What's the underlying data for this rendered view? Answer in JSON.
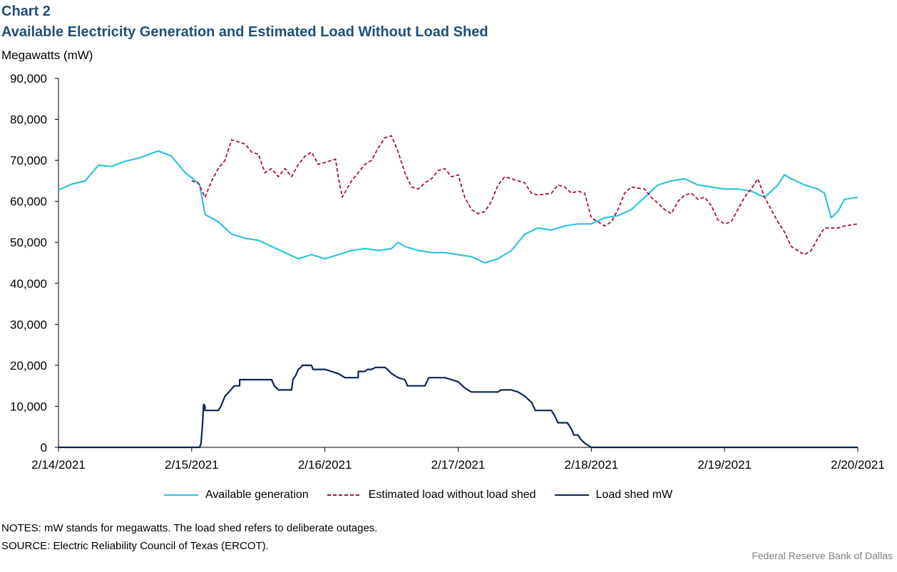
{
  "header": {
    "chart_label": "Chart 2",
    "title": "Available Electricity Generation and Estimated Load Without Load Shed",
    "unit": "Megawatts (mW)"
  },
  "footer": {
    "notes": "NOTES: mW stands for megawatts. The load shed refers to deliberate outages.",
    "source": "SOURCE: Electric Reliability Council of Texas (ERCOT).",
    "credit": "Federal Reserve  Bank of Dallas"
  },
  "chart_data": {
    "type": "line",
    "title": "Available Electricity Generation and Estimated Load Without Load Shed",
    "ylabel": "Megawatts (mW)",
    "xlabel": "",
    "ylim": [
      0,
      90000
    ],
    "xlim": [
      0,
      6
    ],
    "x_tick_values": [
      0,
      1,
      2,
      3,
      4,
      5,
      6
    ],
    "x_tick_labels": [
      "2/14/2021",
      "2/15/2021",
      "2/16/2021",
      "2/17/2021",
      "2/18/2021",
      "2/19/2021",
      "2/20/2021"
    ],
    "y_ticks": [
      0,
      10000,
      20000,
      30000,
      40000,
      50000,
      60000,
      70000,
      80000,
      90000
    ],
    "y_tick_labels": [
      "0",
      "10,000",
      "20,000",
      "30,000",
      "40,000",
      "50,000",
      "60,000",
      "70,000",
      "80,000",
      "90,000"
    ],
    "x_unit": "days since 2/14/2021",
    "grid": false,
    "legend_position": "bottom",
    "series": [
      {
        "name": "Available generation",
        "color": "#2fc4db",
        "style": "solid",
        "points": [
          [
            0,
            62800
          ],
          [
            0.1,
            64200
          ],
          [
            0.2,
            65000
          ],
          [
            0.3,
            68800
          ],
          [
            0.4,
            68500
          ],
          [
            0.5,
            69800
          ],
          [
            0.6,
            70500
          ],
          [
            0.75,
            72300
          ],
          [
            0.85,
            71000
          ],
          [
            0.95,
            67000
          ],
          [
            1.0,
            65800
          ],
          [
            1.06,
            64000
          ],
          [
            1.1,
            56800
          ],
          [
            1.2,
            55000
          ],
          [
            1.3,
            52000
          ],
          [
            1.4,
            51000
          ],
          [
            1.5,
            50500
          ],
          [
            1.6,
            49000
          ],
          [
            1.7,
            47500
          ],
          [
            1.8,
            46000
          ],
          [
            1.9,
            47000
          ],
          [
            2.0,
            46000
          ],
          [
            2.1,
            47000
          ],
          [
            2.2,
            48000
          ],
          [
            2.3,
            48500
          ],
          [
            2.4,
            48000
          ],
          [
            2.5,
            48500
          ],
          [
            2.55,
            50000
          ],
          [
            2.6,
            49000
          ],
          [
            2.7,
            48000
          ],
          [
            2.8,
            47500
          ],
          [
            2.9,
            47500
          ],
          [
            3.0,
            47000
          ],
          [
            3.1,
            46500
          ],
          [
            3.2,
            45000
          ],
          [
            3.3,
            46000
          ],
          [
            3.4,
            48000
          ],
          [
            3.5,
            52000
          ],
          [
            3.6,
            53500
          ],
          [
            3.7,
            53000
          ],
          [
            3.8,
            54000
          ],
          [
            3.9,
            54500
          ],
          [
            4.0,
            54500
          ],
          [
            4.1,
            56000
          ],
          [
            4.2,
            56500
          ],
          [
            4.3,
            58000
          ],
          [
            4.4,
            61000
          ],
          [
            4.5,
            64000
          ],
          [
            4.6,
            65000
          ],
          [
            4.7,
            65500
          ],
          [
            4.8,
            64000
          ],
          [
            4.9,
            63500
          ],
          [
            5.0,
            63000
          ],
          [
            5.1,
            63000
          ],
          [
            5.2,
            62500
          ],
          [
            5.3,
            61000
          ],
          [
            5.35,
            62500
          ],
          [
            5.4,
            64000
          ],
          [
            5.45,
            66500
          ],
          [
            5.5,
            65500
          ],
          [
            5.6,
            64000
          ],
          [
            5.7,
            63000
          ],
          [
            5.75,
            62000
          ],
          [
            5.8,
            56000
          ],
          [
            5.85,
            57500
          ],
          [
            5.9,
            60500
          ],
          [
            6.0,
            61000
          ]
        ]
      },
      {
        "name": "Estimated load without load shed",
        "color": "#a6113c",
        "style": "dashed",
        "points": [
          [
            1.0,
            65000
          ],
          [
            1.05,
            64500
          ],
          [
            1.1,
            61000
          ],
          [
            1.15,
            65000
          ],
          [
            1.2,
            68000
          ],
          [
            1.25,
            70000
          ],
          [
            1.3,
            75000
          ],
          [
            1.35,
            74500
          ],
          [
            1.4,
            74000
          ],
          [
            1.45,
            72000
          ],
          [
            1.5,
            71500
          ],
          [
            1.55,
            67000
          ],
          [
            1.6,
            68000
          ],
          [
            1.65,
            66000
          ],
          [
            1.7,
            68000
          ],
          [
            1.75,
            66000
          ],
          [
            1.8,
            69000
          ],
          [
            1.85,
            71000
          ],
          [
            1.9,
            72000
          ],
          [
            1.95,
            69000
          ],
          [
            2.0,
            69500
          ],
          [
            2.05,
            70000
          ],
          [
            2.08,
            70300
          ],
          [
            2.1,
            66000
          ],
          [
            2.13,
            61000
          ],
          [
            2.2,
            65000
          ],
          [
            2.3,
            69000
          ],
          [
            2.35,
            70000
          ],
          [
            2.4,
            73000
          ],
          [
            2.45,
            75500
          ],
          [
            2.5,
            76000
          ],
          [
            2.55,
            72000
          ],
          [
            2.6,
            67000
          ],
          [
            2.65,
            63500
          ],
          [
            2.7,
            63000
          ],
          [
            2.75,
            64500
          ],
          [
            2.8,
            65500
          ],
          [
            2.85,
            67500
          ],
          [
            2.9,
            68000
          ],
          [
            2.95,
            66000
          ],
          [
            3.0,
            66500
          ],
          [
            3.05,
            61000
          ],
          [
            3.1,
            58000
          ],
          [
            3.15,
            57000
          ],
          [
            3.2,
            57500
          ],
          [
            3.25,
            60000
          ],
          [
            3.3,
            64000
          ],
          [
            3.35,
            66000
          ],
          [
            3.4,
            65500
          ],
          [
            3.5,
            64500
          ],
          [
            3.55,
            62000
          ],
          [
            3.6,
            61500
          ],
          [
            3.7,
            62000
          ],
          [
            3.75,
            64000
          ],
          [
            3.8,
            63500
          ],
          [
            3.85,
            62000
          ],
          [
            3.9,
            62500
          ],
          [
            3.95,
            62000
          ],
          [
            4.0,
            56000
          ],
          [
            4.1,
            54000
          ],
          [
            4.15,
            55000
          ],
          [
            4.2,
            58000
          ],
          [
            4.25,
            62000
          ],
          [
            4.3,
            63500
          ],
          [
            4.4,
            63000
          ],
          [
            4.45,
            61000
          ],
          [
            4.5,
            59500
          ],
          [
            4.55,
            58000
          ],
          [
            4.6,
            57000
          ],
          [
            4.65,
            60000
          ],
          [
            4.7,
            61500
          ],
          [
            4.75,
            62000
          ],
          [
            4.8,
            60500
          ],
          [
            4.85,
            61000
          ],
          [
            4.9,
            59000
          ],
          [
            4.95,
            55500
          ],
          [
            5.0,
            54500
          ],
          [
            5.05,
            55000
          ],
          [
            5.1,
            58000
          ],
          [
            5.15,
            61000
          ],
          [
            5.2,
            63000
          ],
          [
            5.25,
            65500
          ],
          [
            5.3,
            61000
          ],
          [
            5.35,
            58000
          ],
          [
            5.4,
            55000
          ],
          [
            5.45,
            52500
          ],
          [
            5.5,
            49000
          ],
          [
            5.55,
            48000
          ],
          [
            5.6,
            47000
          ],
          [
            5.65,
            48000
          ],
          [
            5.7,
            51000
          ],
          [
            5.75,
            53500
          ],
          [
            5.8,
            53500
          ],
          [
            5.85,
            53500
          ],
          [
            5.9,
            54000
          ],
          [
            6.0,
            54500
          ]
        ]
      },
      {
        "name": "Load shed mW",
        "color": "#0b2455",
        "style": "solid",
        "points": [
          [
            0,
            0
          ],
          [
            1.06,
            0
          ],
          [
            1.07,
            1000
          ],
          [
            1.08,
            5000
          ],
          [
            1.09,
            10500
          ],
          [
            1.1,
            10000
          ],
          [
            1.1,
            9000
          ],
          [
            1.2,
            9000
          ],
          [
            1.22,
            10000
          ],
          [
            1.25,
            12500
          ],
          [
            1.28,
            13500
          ],
          [
            1.32,
            15000
          ],
          [
            1.36,
            15000
          ],
          [
            1.36,
            16500
          ],
          [
            1.6,
            16500
          ],
          [
            1.62,
            15000
          ],
          [
            1.65,
            14000
          ],
          [
            1.75,
            14000
          ],
          [
            1.76,
            16500
          ],
          [
            1.78,
            17500
          ],
          [
            1.8,
            19000
          ],
          [
            1.82,
            19500
          ],
          [
            1.83,
            20000
          ],
          [
            1.9,
            20000
          ],
          [
            1.91,
            19000
          ],
          [
            2.0,
            19000
          ],
          [
            2.05,
            18500
          ],
          [
            2.1,
            18000
          ],
          [
            2.15,
            17000
          ],
          [
            2.25,
            17000
          ],
          [
            2.25,
            18500
          ],
          [
            2.3,
            18500
          ],
          [
            2.32,
            19000
          ],
          [
            2.35,
            19000
          ],
          [
            2.38,
            19500
          ],
          [
            2.45,
            19500
          ],
          [
            2.47,
            19000
          ],
          [
            2.5,
            18000
          ],
          [
            2.55,
            17000
          ],
          [
            2.6,
            16500
          ],
          [
            2.62,
            15000
          ],
          [
            2.75,
            15000
          ],
          [
            2.78,
            17000
          ],
          [
            2.9,
            17000
          ],
          [
            2.95,
            16500
          ],
          [
            3.0,
            16000
          ],
          [
            3.05,
            14500
          ],
          [
            3.1,
            13500
          ],
          [
            3.3,
            13500
          ],
          [
            3.32,
            14000
          ],
          [
            3.4,
            14000
          ],
          [
            3.45,
            13500
          ],
          [
            3.5,
            12500
          ],
          [
            3.55,
            11000
          ],
          [
            3.58,
            9000
          ],
          [
            3.7,
            9000
          ],
          [
            3.72,
            8000
          ],
          [
            3.75,
            6000
          ],
          [
            3.82,
            6000
          ],
          [
            3.85,
            4500
          ],
          [
            3.87,
            3000
          ],
          [
            3.9,
            3000
          ],
          [
            3.92,
            2000
          ],
          [
            3.95,
            1000
          ],
          [
            4.0,
            0
          ],
          [
            6.0,
            0
          ]
        ]
      }
    ]
  }
}
